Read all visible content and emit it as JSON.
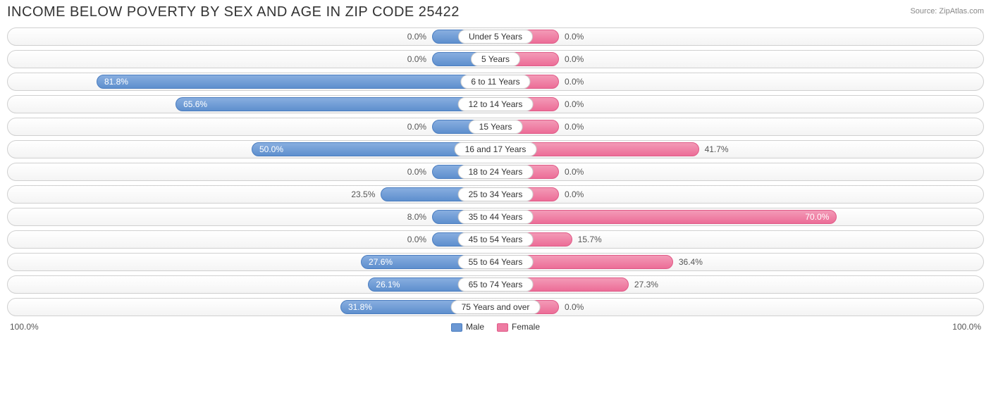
{
  "title": "INCOME BELOW POVERTY BY SEX AND AGE IN ZIP CODE 25422",
  "source": "Source: ZipAtlas.com",
  "axis_max_label": "100.0%",
  "legend": {
    "male": "Male",
    "female": "Female"
  },
  "chart": {
    "type": "diverging-bar",
    "male_color": "#6b97d3",
    "female_color": "#ee7ba2",
    "track_border": "#d0d0d0",
    "background": "#ffffff",
    "min_bar_pct": 13,
    "scale_max": 100.0,
    "rows": [
      {
        "label": "Under 5 Years",
        "male": 0.0,
        "female": 0.0
      },
      {
        "label": "5 Years",
        "male": 0.0,
        "female": 0.0
      },
      {
        "label": "6 to 11 Years",
        "male": 81.8,
        "female": 0.0
      },
      {
        "label": "12 to 14 Years",
        "male": 65.6,
        "female": 0.0
      },
      {
        "label": "15 Years",
        "male": 0.0,
        "female": 0.0
      },
      {
        "label": "16 and 17 Years",
        "male": 50.0,
        "female": 41.7
      },
      {
        "label": "18 to 24 Years",
        "male": 0.0,
        "female": 0.0
      },
      {
        "label": "25 to 34 Years",
        "male": 23.5,
        "female": 0.0
      },
      {
        "label": "35 to 44 Years",
        "male": 8.0,
        "female": 70.0
      },
      {
        "label": "45 to 54 Years",
        "male": 0.0,
        "female": 15.7
      },
      {
        "label": "55 to 64 Years",
        "male": 27.6,
        "female": 36.4
      },
      {
        "label": "65 to 74 Years",
        "male": 26.1,
        "female": 27.3
      },
      {
        "label": "75 Years and over",
        "male": 31.8,
        "female": 0.0
      }
    ]
  }
}
